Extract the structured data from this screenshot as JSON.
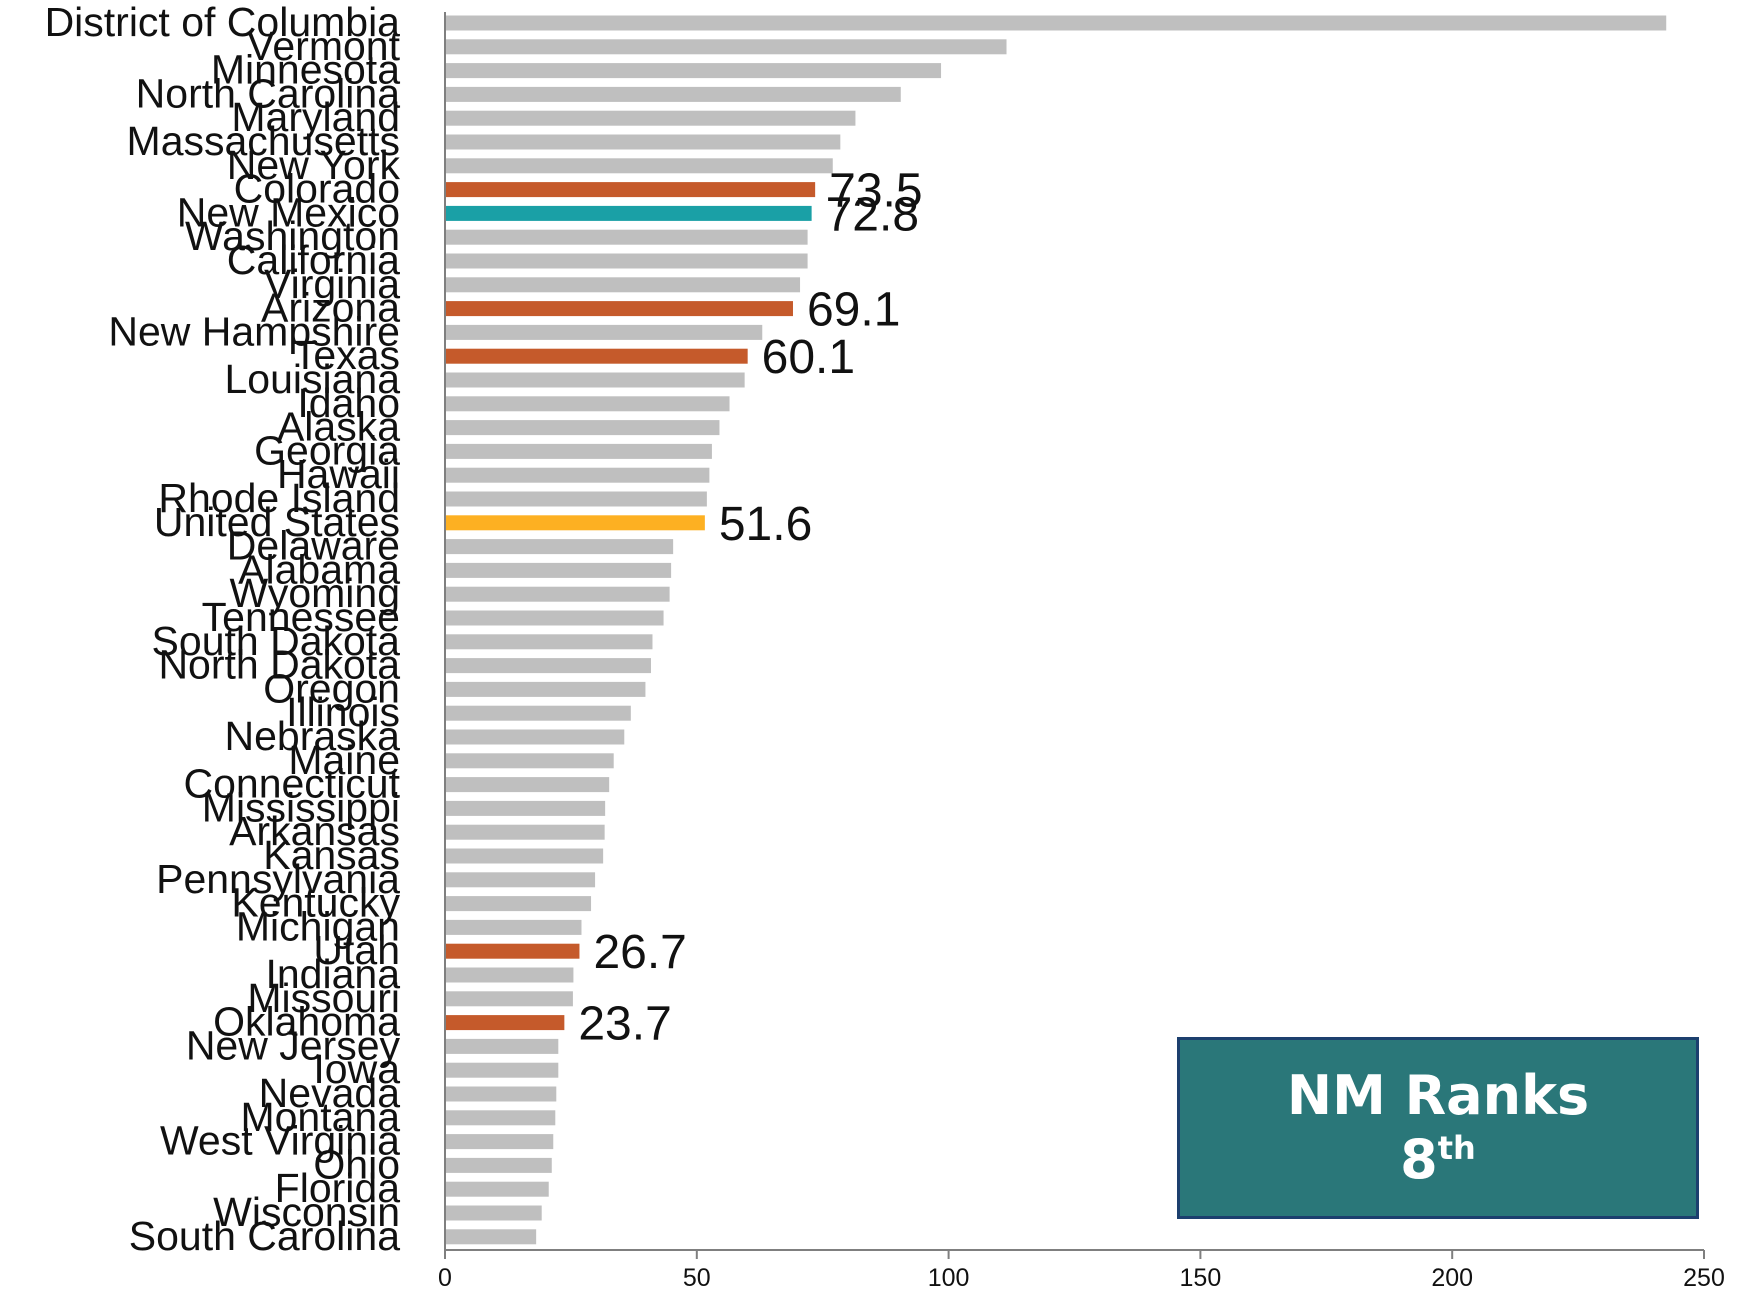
{
  "chart_data": {
    "type": "bar",
    "orientation": "horizontal",
    "categories": [
      "District of Columbia",
      "Vermont",
      "Minnesota",
      "North Carolina",
      "Maryland",
      "Massachusetts",
      "New York",
      "Colorado",
      "New Mexico",
      "Washington",
      "California",
      "Virginia",
      "Arizona",
      "New Hampshire",
      "Texas",
      "Louisiana",
      "Idaho",
      "Alaska",
      "Georgia",
      "Hawaii",
      "Rhode Island",
      "United States",
      "Delaware",
      "Alabama",
      "Wyoming",
      "Tennessee",
      "South Dakota",
      "North Dakota",
      "Oregon",
      "Illinois",
      "Nebraska",
      "Maine",
      "Connecticut",
      "Mississippi",
      "Arkansas",
      "Kansas",
      "Pennsylvania",
      "Kentucky",
      "Michigan",
      "Utah",
      "Indiana",
      "Missouri",
      "Oklahoma",
      "New Jersey",
      "Iowa",
      "Nevada",
      "Montana",
      "West Virginia",
      "Ohio",
      "Florida",
      "Wisconsin",
      "South Carolina"
    ],
    "values": [
      242.5,
      111.5,
      98.5,
      90.5,
      81.5,
      78.5,
      77,
      73.5,
      72.8,
      72,
      72,
      70.5,
      69.1,
      63,
      60.1,
      59.5,
      56.5,
      54.5,
      53,
      52.5,
      52,
      51.6,
      45.3,
      44.9,
      44.6,
      43.4,
      41.2,
      40.9,
      39.8,
      36.9,
      35.6,
      33.5,
      32.6,
      31.8,
      31.7,
      31.4,
      29.8,
      29,
      27.1,
      26.7,
      25.5,
      25.4,
      23.7,
      22.5,
      22.5,
      22.1,
      21.9,
      21.5,
      21.2,
      20.6,
      19.2,
      18.1
    ],
    "bar_colors": {
      "default": "#bfbfbf",
      "highlight": "#c55a2b",
      "focus": "#1aa0a6",
      "national": "#fdb022"
    },
    "color_groups": {
      "highlight": [
        "Colorado",
        "Arizona",
        "Texas",
        "Utah",
        "Oklahoma"
      ],
      "focus": [
        "New Mexico"
      ],
      "national": [
        "United States"
      ]
    },
    "data_labels": [
      {
        "category": "Colorado",
        "text": "73.5"
      },
      {
        "category": "New Mexico",
        "text": "72.8"
      },
      {
        "category": "Arizona",
        "text": "69.1"
      },
      {
        "category": "Texas",
        "text": "60.1"
      },
      {
        "category": "United States",
        "text": "51.6"
      },
      {
        "category": "Utah",
        "text": "26.7"
      },
      {
        "category": "Oklahoma",
        "text": "23.7"
      }
    ],
    "xlim": [
      0,
      250
    ],
    "xticks": [
      0,
      50,
      100,
      150,
      200,
      250
    ],
    "grid": false,
    "title": "",
    "xlabel": "",
    "ylabel": ""
  },
  "callout": {
    "title": "NM Ranks",
    "rank_number": "8",
    "rank_suffix": "th",
    "background": "#2a7779"
  }
}
